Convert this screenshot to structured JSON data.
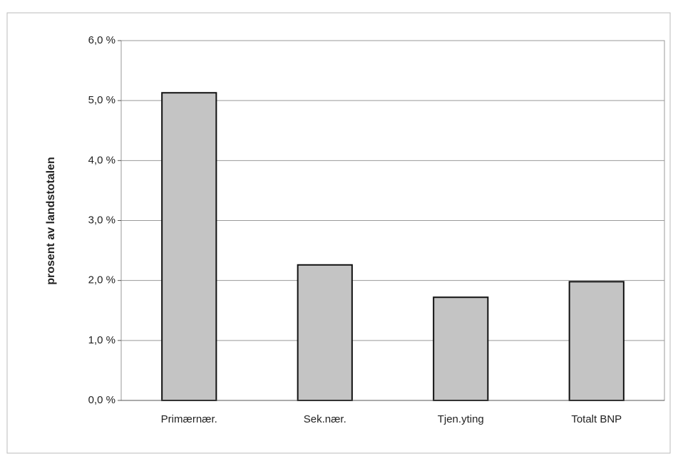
{
  "chart_data": {
    "type": "bar",
    "y_label": "prosent av landstotalen",
    "categories": [
      "Primærnær.",
      "Sek.nær.",
      "Tjen.yting",
      "Totalt BNP"
    ],
    "values": [
      5.13,
      2.26,
      1.72,
      1.98
    ],
    "color": "#c4c4c4",
    "ylim": [
      0,
      6
    ],
    "yticks": [
      {
        "value": 0,
        "label": "0,0 %"
      },
      {
        "value": 1,
        "label": "1,0 %"
      },
      {
        "value": 2,
        "label": "2,0 %"
      },
      {
        "value": 3,
        "label": "3,0 %"
      },
      {
        "value": 4,
        "label": "4,0 %"
      },
      {
        "value": 5,
        "label": "5,0 %"
      },
      {
        "value": 6,
        "label": "6,0 %"
      }
    ],
    "grid": true
  }
}
